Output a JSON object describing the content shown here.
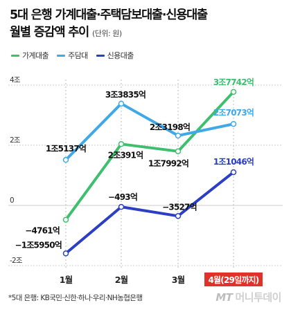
{
  "title_line1": "5대 은행 가계대출·주택담보대출·신용대출",
  "title_line2": "월별 증감액 추이",
  "unit": "(단위: 원)",
  "source": "*5대 은행: KB국민·신한·하나·우리·NH농협은행",
  "watermark": {
    "brand": "MT",
    "text": "머니투데이"
  },
  "colors": {
    "household": "#3dbf6e",
    "mortgage": "#3fa9e8",
    "credit": "#2a3fc4",
    "highlight": "#e0322b"
  },
  "chart_data": {
    "type": "line",
    "categories": [
      "1월",
      "2월",
      "3월",
      "4월(29일까지)"
    ],
    "highlight_category": 3,
    "y_ticks": [
      "4조",
      "2조",
      "0",
      "-2조"
    ],
    "ylim": [
      -2,
      4
    ],
    "series": [
      {
        "name": "가계대출",
        "color_key": "household",
        "values": [
          -0.4761,
          2.0391,
          1.7992,
          3.7742
        ],
        "labels": [
          "−4761억",
          "2조391억",
          "1조7992억",
          "3조7742억"
        ]
      },
      {
        "name": "주담대",
        "color_key": "mortgage",
        "values": [
          1.5137,
          3.3835,
          2.3198,
          2.7073
        ],
        "labels": [
          "1조5137억",
          "3조3835억",
          "2조3198억",
          "2조7073억"
        ]
      },
      {
        "name": "신용대출",
        "color_key": "credit",
        "values": [
          -1.595,
          -0.0493,
          -0.3527,
          1.1046
        ],
        "labels": [
          "−1조5950억",
          "−493억",
          "−3527억",
          "1조1046억"
        ]
      }
    ]
  }
}
